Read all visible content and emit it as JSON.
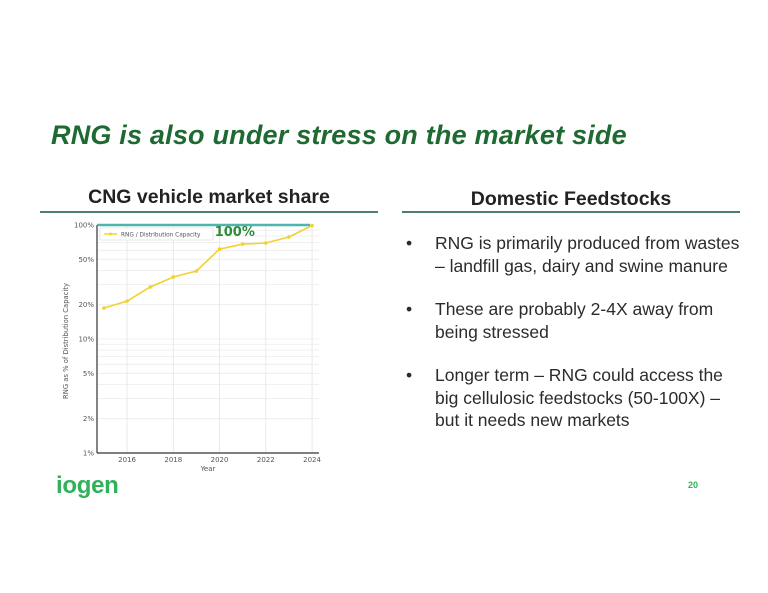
{
  "slide": {
    "title": "RNG is also under stress on the market side",
    "page_number": "20",
    "logo_text": "iogen"
  },
  "left_section": {
    "heading": "CNG vehicle market share"
  },
  "right_section": {
    "heading": "Domestic Feedstocks",
    "bullets": [
      {
        "symbol": "•",
        "text": "RNG is primarily produced from wastes – landfill gas, dairy and swine manure"
      },
      {
        "symbol": "•",
        "text": "These are probably 2-4X away from being stressed"
      },
      {
        "symbol": "•",
        "text": "Longer term – RNG could access the big cellulosic feedstocks (50-100X)  – but it needs new markets"
      }
    ]
  },
  "colors": {
    "title_green": "#1e6a32",
    "brand_green": "#2fb25a",
    "rule": "#4e7d72",
    "series_line": "#f2d22e",
    "capacity_line": "#4fb5ac",
    "annotation": "#2e8b3a"
  },
  "chart_data": {
    "type": "line",
    "title": "",
    "xlabel": "Year",
    "ylabel": "RNG as % of Distribution Capacity",
    "yscale": "log",
    "ylim": [
      1,
      100
    ],
    "xlim": [
      2014.7,
      2024.3
    ],
    "x_ticks": [
      "2016",
      "2018",
      "2020",
      "2022",
      "2024"
    ],
    "y_ticks": [
      "1%",
      "2%",
      "5%",
      "10%",
      "20%",
      "50%",
      "100%"
    ],
    "grid": true,
    "legend_position": "upper left",
    "x": [
      2015,
      2016,
      2017,
      2018,
      2019,
      2020,
      2021,
      2022,
      2023,
      2024
    ],
    "series": [
      {
        "name": "RNG / Distribution Capacity",
        "values": [
          18.7,
          21.5,
          28.6,
          35,
          39.5,
          61.5,
          68,
          69.5,
          78.5,
          99
        ]
      }
    ],
    "reference_lines": [
      {
        "y": 100,
        "label": "100%",
        "color": "#4fb5ac"
      }
    ],
    "annotations": [
      {
        "text": "100%",
        "x": 2021,
        "y": 90
      }
    ]
  }
}
